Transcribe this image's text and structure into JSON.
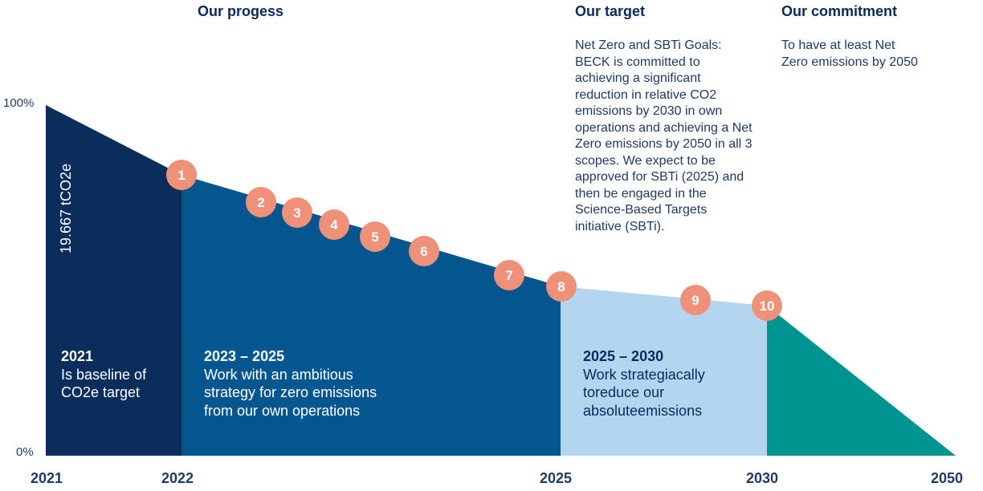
{
  "colors": {
    "heading": "#0a2a5c",
    "body_text": "#1f3a63",
    "band_2021": "#0b2d5b",
    "band_2022_2025": "#03578e",
    "band_2025_2030": "#b4d5f0",
    "band_2030_2050": "#009491",
    "milestone": "#ef9179",
    "white": "#ffffff"
  },
  "headings": {
    "progress": "Our progess",
    "target": "Our target",
    "commitment": "Our commitment"
  },
  "target_text": "Net Zero and SBTi Goals: BECK is committed to achieving a significant reduction in relative CO2 emissions by 2030 in own operations and achieving a Net Zero emissions by 2050 in all 3 scopes. We expect to be approved for SBTi (2025) and then be engaged in the Science-Based Targets initiative (SBTi).",
  "commitment_text": "To have at least Net Zero emissions by 2050",
  "y_axis": {
    "top": "100%",
    "bottom": "0%"
  },
  "x_axis": [
    "2021",
    "2022",
    "2025",
    "2030",
    "2050"
  ],
  "baseline_value": "19.667 tCO2e",
  "bands": [
    {
      "title": "2021",
      "lines": [
        "Is baseline of",
        "CO2e target"
      ]
    },
    {
      "title": "2023 – 2025",
      "lines": [
        "Work with an ambitious",
        "strategy for zero emissions",
        "from our own operations"
      ]
    },
    {
      "title": "2025 – 2030",
      "lines": [
        "Work strategiacally",
        "toreduce our",
        "absoluteemissions"
      ]
    }
  ],
  "milestones": [
    "1",
    "2",
    "3",
    "4",
    "5",
    "6",
    "7",
    "8",
    "9",
    "10"
  ]
}
